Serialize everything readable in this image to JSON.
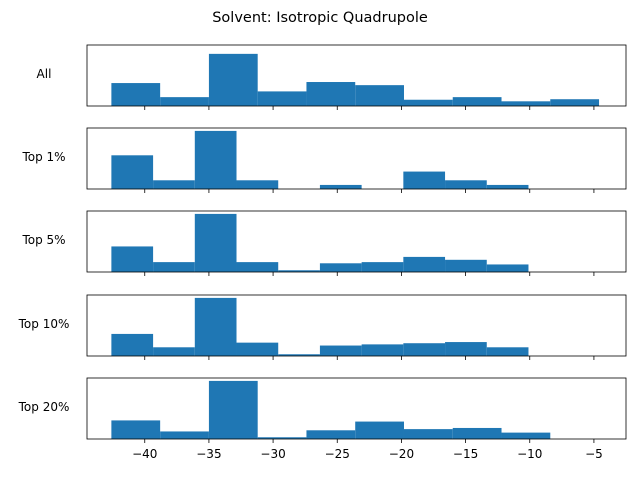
{
  "chart_data": {
    "type": "bar",
    "title": "Solvent: Isotropic Quadrupole",
    "xlim": [
      -44.5,
      -2.5
    ],
    "x_ticks": [
      -40,
      -35,
      -30,
      -25,
      -20,
      -15,
      -10,
      -5
    ],
    "x_tick_labels": [
      "−40",
      "−35",
      "−30",
      "−25",
      "−20",
      "−15",
      "−10",
      "−5"
    ],
    "bar_color": "#1f77b4",
    "grid": false,
    "panels": [
      {
        "label": "All",
        "ylim": [
          0,
          1.17
        ],
        "bins": [
          {
            "left": -42.6,
            "right": -38.8,
            "value": 0.44
          },
          {
            "left": -38.8,
            "right": -35.0,
            "value": 0.17
          },
          {
            "left": -35.0,
            "right": -31.2,
            "value": 1.0
          },
          {
            "left": -31.2,
            "right": -27.4,
            "value": 0.28
          },
          {
            "left": -27.4,
            "right": -23.6,
            "value": 0.46
          },
          {
            "left": -23.6,
            "right": -19.8,
            "value": 0.4
          },
          {
            "left": -19.8,
            "right": -16.0,
            "value": 0.12
          },
          {
            "left": -16.0,
            "right": -12.2,
            "value": 0.17
          },
          {
            "left": -12.2,
            "right": -8.4,
            "value": 0.09
          },
          {
            "left": -8.4,
            "right": -4.6,
            "value": 0.13
          }
        ]
      },
      {
        "label": "Top 1%",
        "ylim": [
          0,
          1.05
        ],
        "bins": [
          {
            "left": -42.6,
            "right": -39.35,
            "value": 0.58
          },
          {
            "left": -39.35,
            "right": -36.1,
            "value": 0.15
          },
          {
            "left": -36.1,
            "right": -32.85,
            "value": 1.0
          },
          {
            "left": -32.85,
            "right": -29.6,
            "value": 0.15
          },
          {
            "left": -26.35,
            "right": -23.1,
            "value": 0.07
          },
          {
            "left": -19.85,
            "right": -16.6,
            "value": 0.3
          },
          {
            "left": -16.6,
            "right": -13.35,
            "value": 0.15
          },
          {
            "left": -13.35,
            "right": -10.1,
            "value": 0.07
          }
        ]
      },
      {
        "label": "Top 5%",
        "ylim": [
          0,
          1.05
        ],
        "bins": [
          {
            "left": -42.6,
            "right": -39.35,
            "value": 0.44
          },
          {
            "left": -39.35,
            "right": -36.1,
            "value": 0.17
          },
          {
            "left": -36.1,
            "right": -32.85,
            "value": 1.0
          },
          {
            "left": -32.85,
            "right": -29.6,
            "value": 0.17
          },
          {
            "left": -29.6,
            "right": -26.35,
            "value": 0.03
          },
          {
            "left": -26.35,
            "right": -23.1,
            "value": 0.15
          },
          {
            "left": -23.1,
            "right": -19.85,
            "value": 0.17
          },
          {
            "left": -19.85,
            "right": -16.6,
            "value": 0.26
          },
          {
            "left": -16.6,
            "right": -13.35,
            "value": 0.21
          },
          {
            "left": -13.35,
            "right": -10.1,
            "value": 0.13
          }
        ]
      },
      {
        "label": "Top 10%",
        "ylim": [
          0,
          1.05
        ],
        "bins": [
          {
            "left": -42.6,
            "right": -39.35,
            "value": 0.38
          },
          {
            "left": -39.35,
            "right": -36.1,
            "value": 0.15
          },
          {
            "left": -36.1,
            "right": -32.85,
            "value": 1.0
          },
          {
            "left": -32.85,
            "right": -29.6,
            "value": 0.23
          },
          {
            "left": -29.6,
            "right": -26.35,
            "value": 0.03
          },
          {
            "left": -26.35,
            "right": -23.1,
            "value": 0.18
          },
          {
            "left": -23.1,
            "right": -19.85,
            "value": 0.2
          },
          {
            "left": -19.85,
            "right": -16.6,
            "value": 0.22
          },
          {
            "left": -16.6,
            "right": -13.35,
            "value": 0.24
          },
          {
            "left": -13.35,
            "right": -10.1,
            "value": 0.15
          }
        ]
      },
      {
        "label": "Top 20%",
        "ylim": [
          0,
          1.05
        ],
        "bins": [
          {
            "left": -42.6,
            "right": -38.8,
            "value": 0.32
          },
          {
            "left": -38.8,
            "right": -35.0,
            "value": 0.13
          },
          {
            "left": -35.0,
            "right": -31.2,
            "value": 1.0
          },
          {
            "left": -31.2,
            "right": -27.4,
            "value": 0.03
          },
          {
            "left": -27.4,
            "right": -23.6,
            "value": 0.15
          },
          {
            "left": -23.6,
            "right": -19.8,
            "value": 0.3
          },
          {
            "left": -19.8,
            "right": -16.0,
            "value": 0.17
          },
          {
            "left": -16.0,
            "right": -12.2,
            "value": 0.19
          },
          {
            "left": -12.2,
            "right": -8.4,
            "value": 0.11
          }
        ]
      }
    ]
  }
}
